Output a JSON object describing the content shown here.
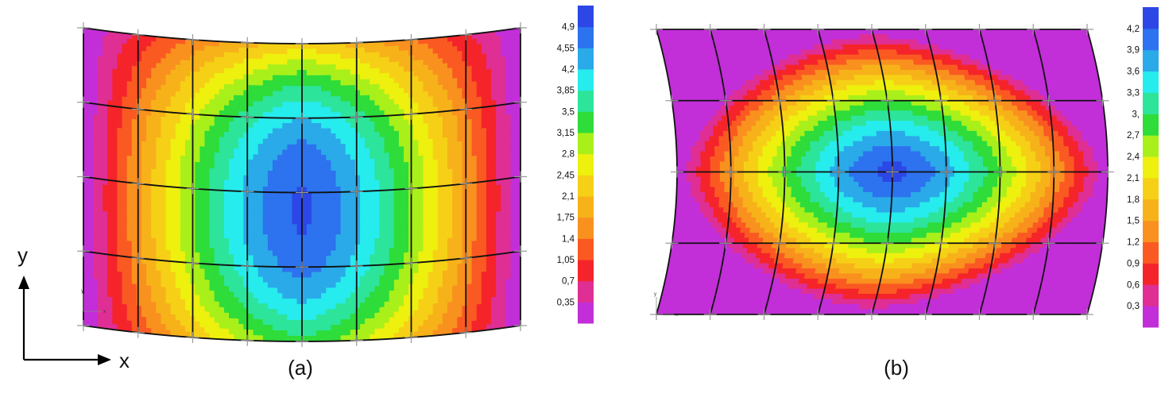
{
  "axes": {
    "x_label": "x",
    "y_label": "y"
  },
  "panels": [
    {
      "id": "a",
      "caption": "(a)",
      "mini_axes": {
        "x": "x",
        "y": "y"
      },
      "scale_labels": [
        "4,9",
        "4,55",
        "4,2",
        "3,85",
        "3,5",
        "3,15",
        "2,8",
        "2,45",
        "2,1",
        "1,75",
        "1,4",
        "1,05",
        "0,7",
        "0,35"
      ],
      "scale_max": 4.9,
      "max_value": 4.95,
      "field_shape": "bowl",
      "mesh_columns": 9,
      "mesh_rows": 5
    },
    {
      "id": "b",
      "caption": "(b)",
      "mini_axes": {
        "x": "x",
        "y": "y"
      },
      "scale_labels": [
        "4,2",
        "3,9",
        "3,6",
        "3,3",
        "3,",
        "2,7",
        "2,4",
        "2,1",
        "1,8",
        "1,5",
        "1,2",
        "0,9",
        "0,6",
        "0,3"
      ],
      "scale_max": 4.2,
      "max_value": 4.3,
      "field_shape": "pinched",
      "mesh_columns": 9,
      "mesh_rows": 5
    }
  ],
  "colors": [
    "#c22ed8",
    "#df2f94",
    "#f5242a",
    "#fa5a22",
    "#f9911f",
    "#f7b21a",
    "#f6d016",
    "#eef00e",
    "#a9f01b",
    "#2edc3a",
    "#2de49b",
    "#26eced",
    "#2aaae8",
    "#2d72ee",
    "#2c47e6"
  ]
}
